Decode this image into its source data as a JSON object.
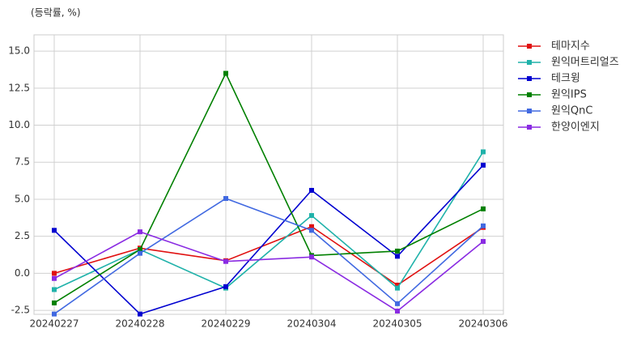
{
  "chart_data": {
    "type": "line",
    "subtitle": "(등락률, %)",
    "categories": [
      "20240227",
      "20240228",
      "20240229",
      "20240304",
      "20240305",
      "20240306"
    ],
    "series": [
      {
        "name": "테마지수",
        "color": "#e01010",
        "values": [
          0.0,
          1.7,
          0.85,
          3.15,
          -0.8,
          3.1
        ]
      },
      {
        "name": "원익머트리얼즈",
        "color": "#20b2aa",
        "values": [
          -1.1,
          1.6,
          -1.0,
          3.9,
          -1.0,
          8.2
        ]
      },
      {
        "name": "테크윙",
        "color": "#0000d0",
        "values": [
          2.9,
          -2.75,
          -0.9,
          5.6,
          1.15,
          7.3
        ]
      },
      {
        "name": "원익IPS",
        "color": "#008000",
        "values": [
          -2.0,
          1.6,
          13.5,
          1.2,
          1.5,
          4.35
        ]
      },
      {
        "name": "원익QnC",
        "color": "#4169e1",
        "values": [
          -2.75,
          1.35,
          5.05,
          2.9,
          -2.05,
          3.2
        ]
      },
      {
        "name": "한양이엔지",
        "color": "#8a2be2",
        "values": [
          -0.35,
          2.8,
          0.8,
          1.1,
          -2.55,
          2.15
        ]
      }
    ],
    "ylim": [
      -2.77,
      16.1
    ],
    "yticks": [
      {
        "value": -2.5,
        "label": "-2.5"
      },
      {
        "value": 0,
        "label": "0.0"
      },
      {
        "value": 2.5,
        "label": "2.5"
      },
      {
        "value": 5,
        "label": "5.0"
      },
      {
        "value": 7.5,
        "label": "7.5"
      },
      {
        "value": 10,
        "label": "10.0"
      },
      {
        "value": 12.5,
        "label": "12.5"
      },
      {
        "value": 15,
        "label": "15.0"
      }
    ],
    "grid": true,
    "legend": "right"
  }
}
